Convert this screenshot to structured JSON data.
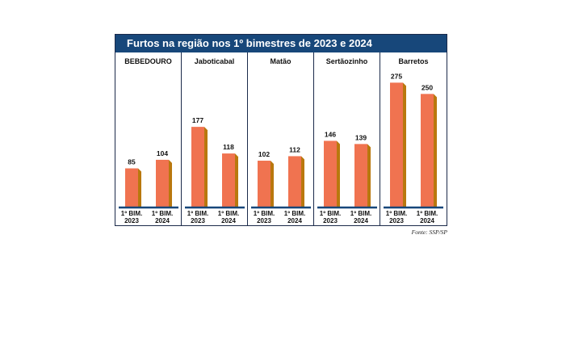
{
  "chart_data": {
    "type": "bar",
    "title": "Furtos na região nos 1º bimestres de 2023 e 2024",
    "source": "Fonte: SSP/SP",
    "categories": [
      {
        "line1": "1º BIM.",
        "line2": "2023"
      },
      {
        "line1": "1º BIM.",
        "line2": "2024"
      }
    ],
    "panels": [
      {
        "name": "BEBEDOURO",
        "values": [
          85,
          104
        ]
      },
      {
        "name": "Jaboticabal",
        "values": [
          177,
          118
        ]
      },
      {
        "name": "Matão",
        "values": [
          102,
          112
        ]
      },
      {
        "name": "Sertãozinho",
        "values": [
          146,
          139
        ]
      },
      {
        "name": "Barretos",
        "values": [
          275,
          250
        ]
      }
    ],
    "ylim": [
      0,
      290
    ],
    "colors": {
      "bar_front": "#f07350",
      "bar_side": "#b9780e",
      "baseline": "#17477a",
      "title_bg": "#17477a"
    }
  }
}
